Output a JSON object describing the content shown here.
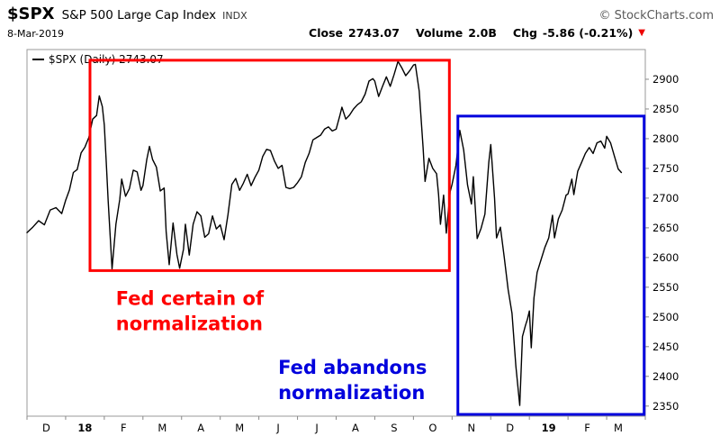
{
  "header": {
    "symbol": "$SPX",
    "name": "S&P 500 Large Cap Index",
    "exchange": "INDX",
    "copyright": "© StockCharts.com",
    "date": "8-Mar-2019",
    "close_label": "Close",
    "close_value": "2743.07",
    "volume_label": "Volume",
    "volume_value": "2.0B",
    "chg_label": "Chg",
    "chg_value": "-5.86 (-0.21%)",
    "direction_icon": "▼"
  },
  "chart_data": {
    "type": "line",
    "symbol": "$SPX",
    "period": "Daily",
    "legend": "$SPX (Daily) 2743.07",
    "x_unit": "months since 1-Dec-2017",
    "xlim": [
      0,
      16
    ],
    "ylim": [
      2333,
      2950
    ],
    "grid": false,
    "y_ticks": [
      2350,
      2400,
      2450,
      2500,
      2550,
      2600,
      2650,
      2700,
      2750,
      2800,
      2850,
      2900
    ],
    "x_ticks": [
      {
        "label": "D",
        "pos": 0.5,
        "bold": false
      },
      {
        "label": "18",
        "pos": 1.5,
        "bold": true
      },
      {
        "label": "F",
        "pos": 2.5,
        "bold": false
      },
      {
        "label": "M",
        "pos": 3.5,
        "bold": false
      },
      {
        "label": "A",
        "pos": 4.5,
        "bold": false
      },
      {
        "label": "M",
        "pos": 5.5,
        "bold": false
      },
      {
        "label": "J",
        "pos": 6.5,
        "bold": false
      },
      {
        "label": "J",
        "pos": 7.5,
        "bold": false
      },
      {
        "label": "A",
        "pos": 8.5,
        "bold": false
      },
      {
        "label": "S",
        "pos": 9.5,
        "bold": false
      },
      {
        "label": "O",
        "pos": 10.5,
        "bold": false
      },
      {
        "label": "N",
        "pos": 11.5,
        "bold": false
      },
      {
        "label": "D",
        "pos": 12.5,
        "bold": false
      },
      {
        "label": "19",
        "pos": 13.5,
        "bold": true
      },
      {
        "label": "F",
        "pos": 14.5,
        "bold": false
      },
      {
        "label": "M",
        "pos": 15.3,
        "bold": false
      }
    ],
    "series": [
      {
        "name": "$SPX",
        "color": "#000000",
        "x": [
          0.0,
          0.15,
          0.3,
          0.45,
          0.6,
          0.75,
          0.9,
          1.0,
          1.1,
          1.2,
          1.3,
          1.4,
          1.5,
          1.6,
          1.7,
          1.8,
          1.87,
          1.95,
          2.0,
          2.05,
          2.1,
          2.2,
          2.3,
          2.4,
          2.45,
          2.55,
          2.65,
          2.75,
          2.85,
          2.95,
          3.0,
          3.1,
          3.17,
          3.25,
          3.35,
          3.45,
          3.55,
          3.6,
          3.68,
          3.78,
          3.88,
          3.95,
          4.05,
          4.1,
          4.2,
          4.3,
          4.4,
          4.5,
          4.6,
          4.7,
          4.8,
          4.9,
          5.0,
          5.1,
          5.2,
          5.3,
          5.4,
          5.5,
          5.6,
          5.7,
          5.8,
          5.9,
          6.0,
          6.1,
          6.2,
          6.3,
          6.4,
          6.5,
          6.6,
          6.7,
          6.8,
          6.9,
          7.0,
          7.1,
          7.2,
          7.3,
          7.4,
          7.5,
          7.6,
          7.7,
          7.8,
          7.9,
          8.0,
          8.1,
          8.15,
          8.25,
          8.35,
          8.45,
          8.55,
          8.65,
          8.75,
          8.85,
          8.95,
          9.0,
          9.1,
          9.2,
          9.3,
          9.4,
          9.5,
          9.6,
          9.7,
          9.8,
          9.9,
          10.0,
          10.05,
          10.15,
          10.25,
          10.3,
          10.4,
          10.5,
          10.6,
          10.65,
          10.7,
          10.78,
          10.85,
          10.95,
          11.0,
          11.1,
          11.2,
          11.3,
          11.4,
          11.5,
          11.55,
          11.65,
          11.75,
          11.85,
          11.95,
          12.0,
          12.1,
          12.15,
          12.25,
          12.35,
          12.45,
          12.55,
          12.65,
          12.75,
          12.82,
          12.9,
          12.95,
          13.0,
          13.05,
          13.12,
          13.2,
          13.3,
          13.4,
          13.5,
          13.6,
          13.65,
          13.75,
          13.85,
          13.95,
          14.0,
          14.1,
          14.15,
          14.25,
          14.35,
          14.45,
          14.55,
          14.65,
          14.75,
          14.85,
          14.95,
          15.0,
          15.1,
          15.2,
          15.3,
          15.38
        ],
        "y": [
          2642,
          2651,
          2662,
          2655,
          2680,
          2684,
          2674,
          2696,
          2714,
          2743,
          2748,
          2776,
          2786,
          2802,
          2833,
          2839,
          2872,
          2854,
          2823,
          2762,
          2695,
          2581,
          2656,
          2698,
          2732,
          2703,
          2716,
          2747,
          2744,
          2713,
          2721,
          2765,
          2787,
          2765,
          2752,
          2712,
          2717,
          2644,
          2588,
          2658,
          2605,
          2582,
          2614,
          2656,
          2604,
          2656,
          2677,
          2670,
          2634,
          2640,
          2670,
          2648,
          2655,
          2630,
          2672,
          2723,
          2733,
          2713,
          2725,
          2740,
          2721,
          2735,
          2747,
          2770,
          2782,
          2780,
          2763,
          2750,
          2755,
          2718,
          2716,
          2718,
          2726,
          2736,
          2760,
          2775,
          2798,
          2802,
          2806,
          2816,
          2820,
          2813,
          2816,
          2840,
          2853,
          2833,
          2840,
          2850,
          2857,
          2862,
          2875,
          2897,
          2901,
          2897,
          2871,
          2888,
          2904,
          2888,
          2908,
          2930,
          2919,
          2906,
          2914,
          2924,
          2925,
          2880,
          2785,
          2728,
          2767,
          2750,
          2741,
          2706,
          2656,
          2705,
          2641,
          2711,
          2723,
          2755,
          2814,
          2781,
          2722,
          2690,
          2736,
          2632,
          2649,
          2673,
          2760,
          2790,
          2700,
          2633,
          2651,
          2600,
          2546,
          2506,
          2417,
          2351,
          2467,
          2486,
          2496,
          2510,
          2448,
          2532,
          2575,
          2596,
          2617,
          2633,
          2671,
          2633,
          2665,
          2680,
          2705,
          2707,
          2732,
          2706,
          2745,
          2760,
          2775,
          2785,
          2775,
          2793,
          2796,
          2784,
          2804,
          2793,
          2771,
          2749,
          2743
        ]
      }
    ],
    "annotations": [
      {
        "shape": "rect",
        "name": "fed-certain-box",
        "color": "#ff0000",
        "x0": 1.63,
        "x1": 10.93,
        "y0": 2578,
        "y1": 2932
      },
      {
        "shape": "rect",
        "name": "fed-abandons-box",
        "color": "#0000dd",
        "x0": 11.15,
        "x1": 15.97,
        "y0": 2336,
        "y1": 2838
      },
      {
        "shape": "text",
        "name": "fed-certain-text",
        "color": "#ff0000",
        "x": 2.3,
        "y": 2520,
        "lines": [
          "Fed certain of",
          "normalization"
        ]
      },
      {
        "shape": "text",
        "name": "fed-abandons-text",
        "color": "#0000dd",
        "x": 6.5,
        "y": 2404,
        "lines": [
          "Fed abandons",
          "normalization"
        ]
      }
    ]
  }
}
